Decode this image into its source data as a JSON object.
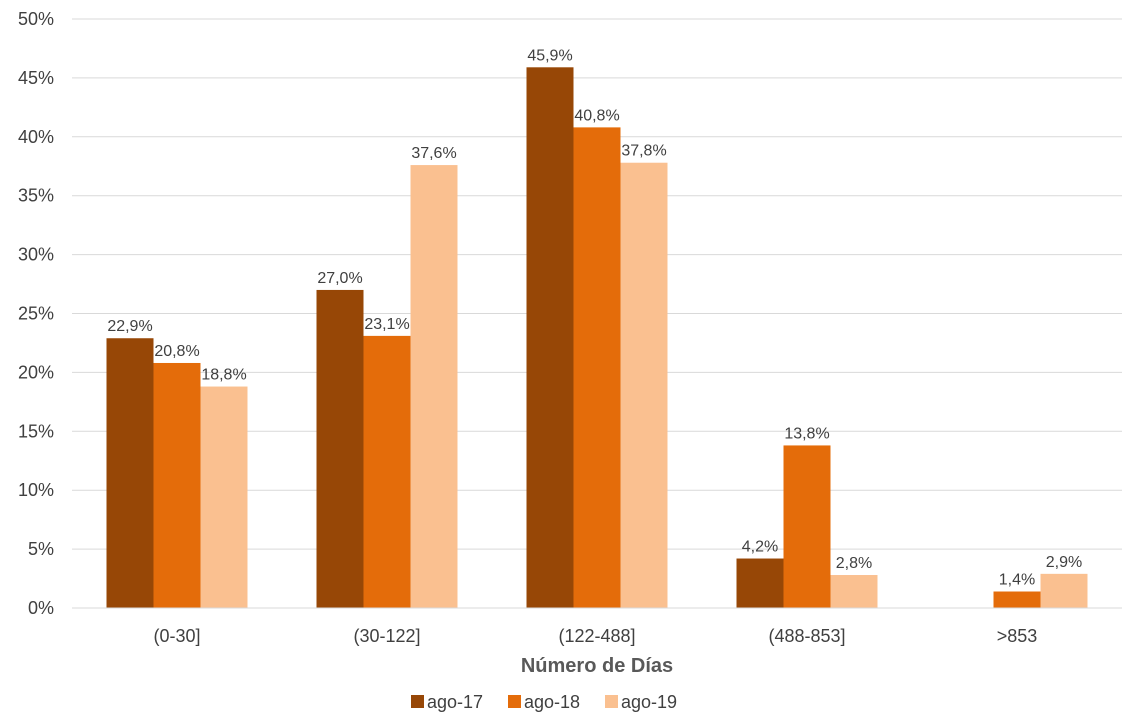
{
  "chart_data": {
    "type": "bar",
    "title": "",
    "xlabel": "Número de Días",
    "ylabel": "",
    "categories": [
      "(0-30]",
      "(30-122]",
      "(122-488]",
      "(488-853]",
      ">853"
    ],
    "series": [
      {
        "name": "ago-17",
        "color": "#974706",
        "values": [
          22.9,
          27.0,
          45.9,
          4.2,
          null
        ],
        "labels": [
          "22,9%",
          "27,0%",
          "45,9%",
          "4,2%",
          ""
        ]
      },
      {
        "name": "ago-18",
        "color": "#E46C0A",
        "values": [
          20.8,
          23.1,
          40.8,
          13.8,
          1.4
        ],
        "labels": [
          "20,8%",
          "23,1%",
          "40,8%",
          "13,8%",
          "1,4%"
        ]
      },
      {
        "name": "ago-19",
        "color": "#FAC090",
        "values": [
          18.8,
          37.6,
          37.8,
          2.8,
          2.9
        ],
        "labels": [
          "18,8%",
          "37,6%",
          "37,8%",
          "2,8%",
          "2,9%"
        ]
      }
    ],
    "ylim": [
      0,
      50
    ],
    "yticks": [
      0,
      5,
      10,
      15,
      20,
      25,
      30,
      35,
      40,
      45,
      50
    ],
    "ytick_labels": [
      "0%",
      "5%",
      "10%",
      "15%",
      "20%",
      "25%",
      "30%",
      "35%",
      "40%",
      "45%",
      "50%"
    ],
    "grid": true,
    "legend_position": "bottom"
  }
}
